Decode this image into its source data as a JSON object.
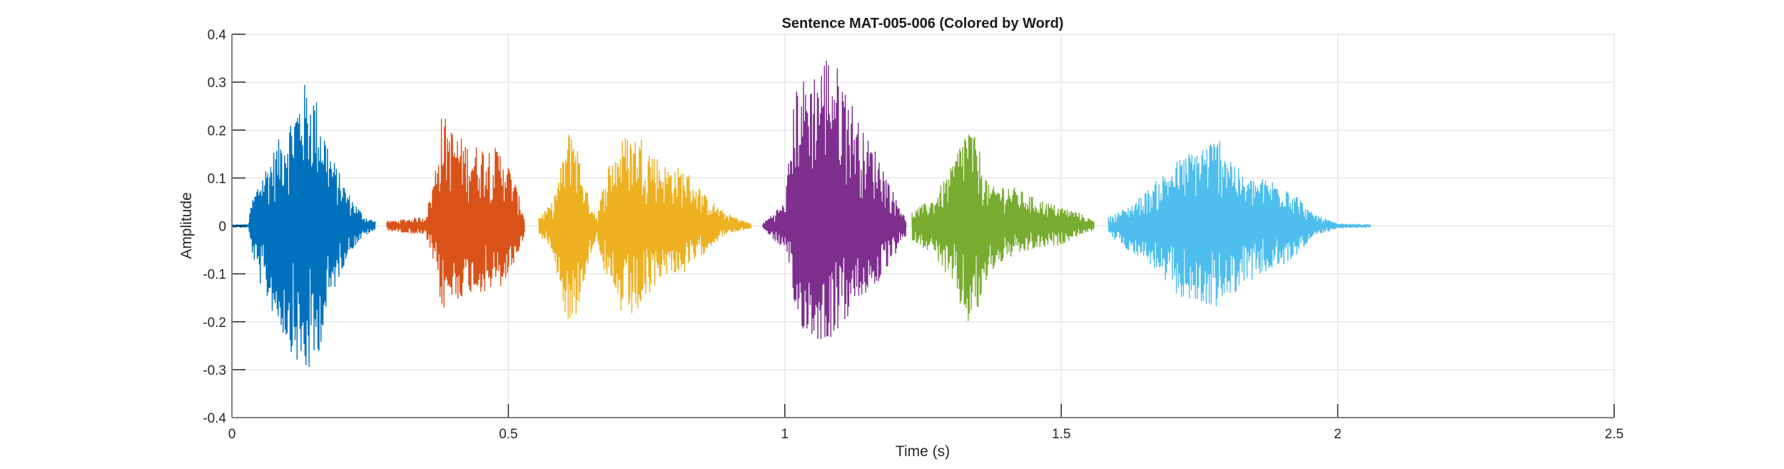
{
  "chart_data": {
    "type": "line",
    "title": "Sentence MAT-005-006 (Colored by Word)",
    "xlabel": "Time (s)",
    "ylabel": "Amplitude",
    "xlim": [
      0,
      2.5
    ],
    "ylim": [
      -0.4,
      0.4
    ],
    "xticks": [
      "0",
      "0.5",
      "1",
      "1.5",
      "2",
      "2.5"
    ],
    "yticks": [
      "-0.4",
      "-0.3",
      "-0.2",
      "-0.1",
      "0",
      "0.1",
      "0.2",
      "0.3",
      "0.4"
    ],
    "grid": true,
    "series": [
      {
        "color": "#0072BD",
        "envelope": [
          [
            0.0,
            0.003,
            -0.003
          ],
          [
            0.03,
            0.004,
            -0.004
          ],
          [
            0.035,
            0.05,
            -0.05
          ],
          [
            0.05,
            0.1,
            -0.12
          ],
          [
            0.08,
            0.17,
            -0.2
          ],
          [
            0.11,
            0.24,
            -0.27
          ],
          [
            0.13,
            0.3,
            -0.32
          ],
          [
            0.15,
            0.28,
            -0.3
          ],
          [
            0.18,
            0.15,
            -0.15
          ],
          [
            0.21,
            0.07,
            -0.06
          ],
          [
            0.24,
            0.02,
            -0.02
          ],
          [
            0.26,
            0.01,
            -0.01
          ]
        ]
      },
      {
        "color": "#D95319",
        "envelope": [
          [
            0.28,
            0.01,
            -0.01
          ],
          [
            0.35,
            0.02,
            -0.02
          ],
          [
            0.365,
            0.1,
            -0.08
          ],
          [
            0.38,
            0.24,
            -0.18
          ],
          [
            0.4,
            0.2,
            -0.16
          ],
          [
            0.43,
            0.17,
            -0.14
          ],
          [
            0.46,
            0.17,
            -0.14
          ],
          [
            0.49,
            0.16,
            -0.13
          ],
          [
            0.51,
            0.1,
            -0.08
          ],
          [
            0.53,
            0.02,
            -0.02
          ]
        ]
      },
      {
        "color": "#EDB120",
        "envelope": [
          [
            0.555,
            0.02,
            -0.02
          ],
          [
            0.58,
            0.05,
            -0.05
          ],
          [
            0.6,
            0.15,
            -0.17
          ],
          [
            0.615,
            0.23,
            -0.23
          ],
          [
            0.64,
            0.08,
            -0.1
          ],
          [
            0.66,
            0.02,
            -0.02
          ],
          [
            0.68,
            0.13,
            -0.14
          ],
          [
            0.71,
            0.19,
            -0.2
          ],
          [
            0.74,
            0.19,
            -0.18
          ],
          [
            0.78,
            0.13,
            -0.1
          ],
          [
            0.82,
            0.12,
            -0.1
          ],
          [
            0.86,
            0.06,
            -0.05
          ],
          [
            0.89,
            0.03,
            -0.02
          ],
          [
            0.94,
            0.005,
            -0.005
          ]
        ]
      },
      {
        "color": "#7E2F8E",
        "envelope": [
          [
            0.96,
            0.005,
            -0.005
          ],
          [
            0.98,
            0.03,
            -0.03
          ],
          [
            1.0,
            0.05,
            -0.05
          ],
          [
            1.02,
            0.3,
            -0.2
          ],
          [
            1.05,
            0.32,
            -0.24
          ],
          [
            1.08,
            0.37,
            -0.24
          ],
          [
            1.11,
            0.3,
            -0.2
          ],
          [
            1.14,
            0.2,
            -0.15
          ],
          [
            1.17,
            0.15,
            -0.12
          ],
          [
            1.2,
            0.06,
            -0.06
          ],
          [
            1.22,
            0.02,
            -0.02
          ]
        ]
      },
      {
        "color": "#77AC30",
        "envelope": [
          [
            1.23,
            0.03,
            -0.03
          ],
          [
            1.27,
            0.06,
            -0.06
          ],
          [
            1.3,
            0.12,
            -0.12
          ],
          [
            1.33,
            0.22,
            -0.21
          ],
          [
            1.35,
            0.17,
            -0.18
          ],
          [
            1.37,
            0.08,
            -0.1
          ],
          [
            1.4,
            0.09,
            -0.07
          ],
          [
            1.45,
            0.06,
            -0.05
          ],
          [
            1.5,
            0.04,
            -0.04
          ],
          [
            1.53,
            0.03,
            -0.02
          ],
          [
            1.56,
            0.01,
            -0.01
          ]
        ]
      },
      {
        "color": "#4DBEEE",
        "envelope": [
          [
            1.585,
            0.02,
            -0.02
          ],
          [
            1.62,
            0.04,
            -0.05
          ],
          [
            1.66,
            0.08,
            -0.08
          ],
          [
            1.7,
            0.13,
            -0.14
          ],
          [
            1.75,
            0.17,
            -0.17
          ],
          [
            1.79,
            0.19,
            -0.17
          ],
          [
            1.83,
            0.1,
            -0.12
          ],
          [
            1.87,
            0.1,
            -0.1
          ],
          [
            1.91,
            0.09,
            -0.08
          ],
          [
            1.95,
            0.03,
            -0.03
          ],
          [
            2.0,
            0.005,
            -0.005
          ],
          [
            2.06,
            0.003,
            -0.003
          ]
        ]
      }
    ]
  }
}
